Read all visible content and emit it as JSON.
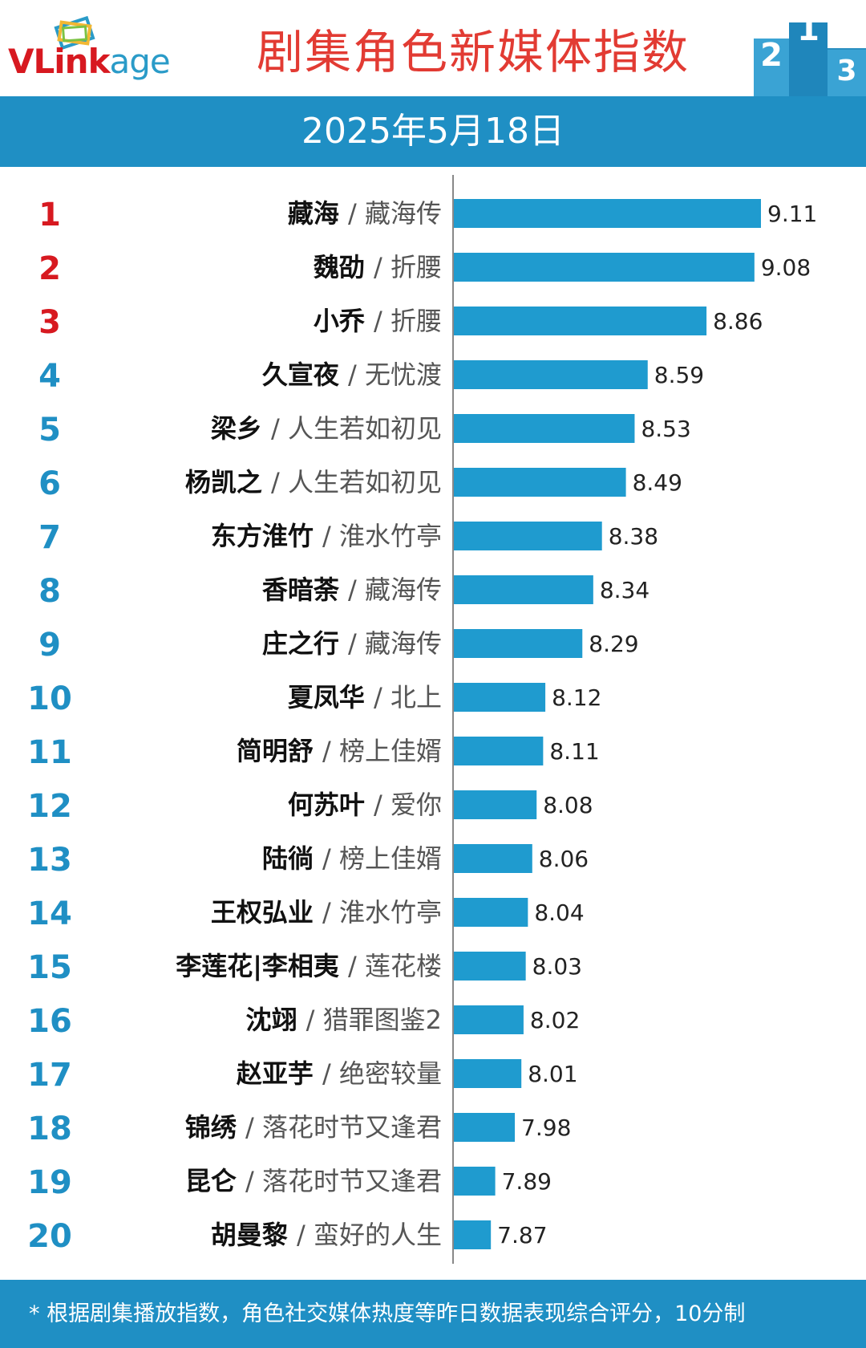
{
  "header": {
    "logo_text_v": "V",
    "logo_text_link": "Link",
    "logo_text_age": "age",
    "title": "剧集角色新媒体指数",
    "podium": [
      "2",
      "1",
      "3"
    ]
  },
  "date": "2025年5月18日",
  "colors": {
    "bar": "#1f9bcf",
    "rank_top3": "#d71920",
    "rank_other": "#1f8fc4",
    "banner": "#1f8fc4",
    "title": "#e23b33"
  },
  "chart_data": {
    "type": "bar",
    "orientation": "horizontal",
    "categories": [
      {
        "rank": "1",
        "name": "藏海",
        "show": "/ 藏海传"
      },
      {
        "rank": "2",
        "name": "魏劭",
        "show": "/ 折腰"
      },
      {
        "rank": "3",
        "name": "小乔",
        "show": "/ 折腰"
      },
      {
        "rank": "4",
        "name": "久宣夜",
        "show": "/ 无忧渡"
      },
      {
        "rank": "5",
        "name": "梁乡",
        "show": "/ 人生若如初见"
      },
      {
        "rank": "6",
        "name": "杨凯之",
        "show": "/ 人生若如初见"
      },
      {
        "rank": "7",
        "name": "东方淮竹",
        "show": "/ 淮水竹亭"
      },
      {
        "rank": "8",
        "name": "香暗荼",
        "show": "/ 藏海传"
      },
      {
        "rank": "9",
        "name": "庄之行",
        "show": "/ 藏海传"
      },
      {
        "rank": "10",
        "name": "夏凤华",
        "show": "/ 北上"
      },
      {
        "rank": "11",
        "name": "简明舒",
        "show": "/ 榜上佳婿"
      },
      {
        "rank": "12",
        "name": "何苏叶",
        "show": "/ 爱你"
      },
      {
        "rank": "13",
        "name": "陆徜",
        "show": "/ 榜上佳婿"
      },
      {
        "rank": "14",
        "name": "王权弘业",
        "show": "/ 淮水竹亭"
      },
      {
        "rank": "15",
        "name": "李莲花|李相夷",
        "show": "/ 莲花楼"
      },
      {
        "rank": "16",
        "name": "沈翊",
        "show": "/ 猎罪图鉴2"
      },
      {
        "rank": "17",
        "name": "赵亚芋",
        "show": "/ 绝密较量"
      },
      {
        "rank": "18",
        "name": "锦绣",
        "show": "/ 落花时节又逢君"
      },
      {
        "rank": "19",
        "name": "昆仑",
        "show": "/ 落花时节又逢君"
      },
      {
        "rank": "20",
        "name": "胡曼黎",
        "show": "/ 蛮好的人生"
      }
    ],
    "values": [
      9.11,
      9.08,
      8.86,
      8.59,
      8.53,
      8.49,
      8.38,
      8.34,
      8.29,
      8.12,
      8.11,
      8.08,
      8.06,
      8.04,
      8.03,
      8.02,
      8.01,
      7.98,
      7.89,
      7.87
    ],
    "labels": [
      "9.11",
      "9.08",
      "8.86",
      "8.59",
      "8.53",
      "8.49",
      "8.38",
      "8.34",
      "8.29",
      "8.12",
      "8.11",
      "8.08",
      "8.06",
      "8.04",
      "8.03",
      "8.02",
      "8.01",
      "7.98",
      "7.89",
      "7.87"
    ],
    "xlim": [
      7.7,
      9.11
    ]
  },
  "footer": {
    "note": "* 根据剧集播放指数，角色社交媒体热度等昨日数据表现综合评分，10分制"
  }
}
